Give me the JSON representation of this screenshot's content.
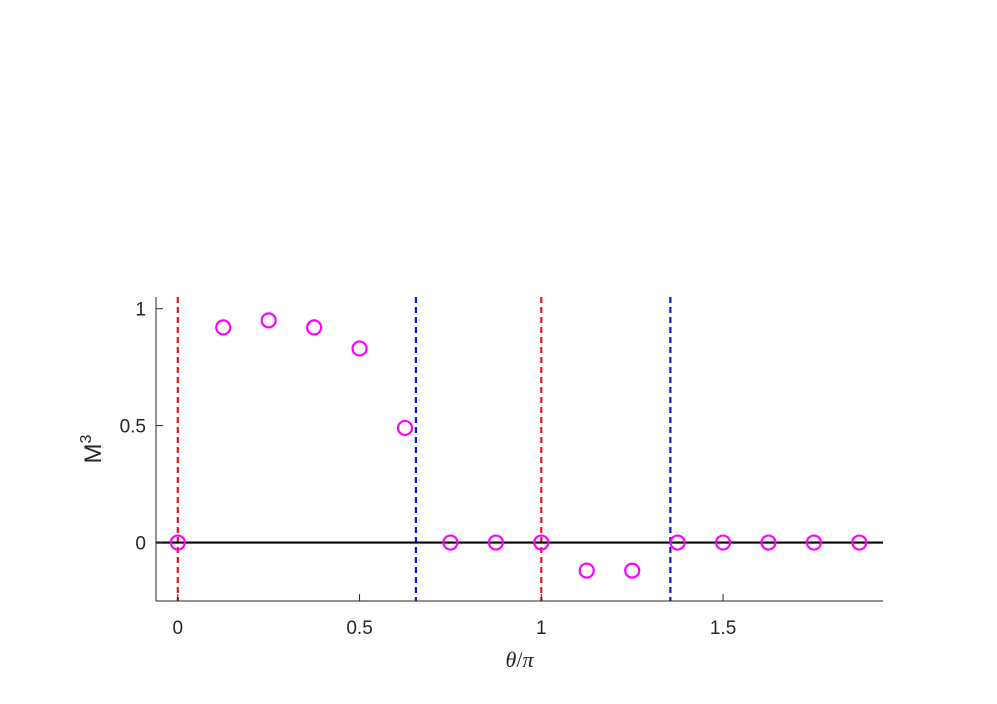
{
  "chart_data": {
    "type": "scatter",
    "xlabel_parts": [
      "θ",
      "/",
      "π"
    ],
    "ylabel_base": "M",
    "ylabel_sup": "3",
    "xlim": [
      -0.06,
      1.94
    ],
    "ylim": [
      -0.25,
      1.05
    ],
    "x_ticks": [
      0,
      0.5,
      1,
      1.5
    ],
    "x_tick_labels": [
      "0",
      "0.5",
      "1",
      "1.5"
    ],
    "y_ticks": [
      0,
      0.5,
      1
    ],
    "y_tick_labels": [
      "0",
      "0.5",
      "1"
    ],
    "grid": false,
    "colors": {
      "points": "#ff00ff",
      "red_lines": "#e8141b",
      "blue_lines": "#0b18e0",
      "zero_line": "#000000",
      "axis": "#262626"
    },
    "points": {
      "x": [
        0,
        0.125,
        0.25,
        0.375,
        0.5,
        0.625,
        0.75,
        0.875,
        1.0,
        1.125,
        1.25,
        1.375,
        1.5,
        1.625,
        1.75,
        1.875
      ],
      "y": [
        0,
        0.92,
        0.95,
        0.92,
        0.83,
        0.49,
        0,
        0,
        0,
        -0.12,
        -0.12,
        0,
        0,
        0,
        0,
        0
      ]
    },
    "red_dashed_x": [
      0,
      1
    ],
    "blue_dashed_x": [
      0.655,
      1.355
    ],
    "zero_line_y": 0
  }
}
